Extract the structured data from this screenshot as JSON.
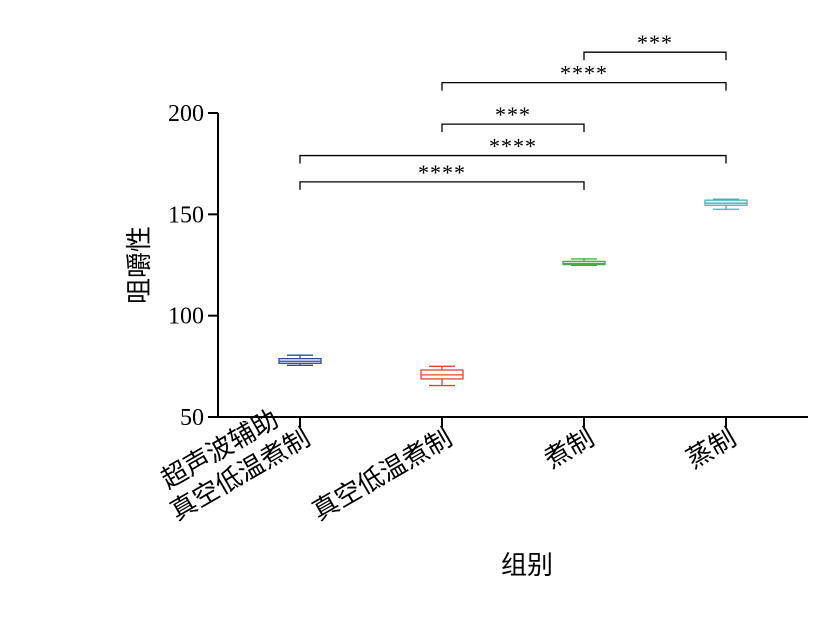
{
  "chart_data": {
    "type": "box",
    "title": "",
    "xlabel": "组别",
    "ylabel": "咀嚼性",
    "ylim": [
      50,
      200
    ],
    "yticks": [
      50,
      100,
      150,
      200
    ],
    "grid": false,
    "legend": "none",
    "categories": [
      [
        "超声波辅助",
        "真空低温煮制"
      ],
      [
        "真空低温煮制"
      ],
      [
        "煮制"
      ],
      [
        "蒸制"
      ]
    ],
    "boxes": [
      {
        "min": 75.5,
        "q1": 76.5,
        "median": 77.5,
        "q3": 78.8,
        "max": 80.5,
        "color": "#2E4A9E"
      },
      {
        "min": 65.5,
        "q1": 68.8,
        "median": 70.8,
        "q3": 73.2,
        "max": 75.0,
        "color": "#E0452F"
      },
      {
        "min": 124.8,
        "q1": 125.2,
        "median": 125.8,
        "q3": 126.8,
        "max": 128.0,
        "color": "#3DAF4A"
      },
      {
        "min": 152.5,
        "q1": 154.5,
        "median": 155.5,
        "q3": 157.0,
        "max": 157.5,
        "color": "#45B3B3"
      }
    ],
    "significance": [
      {
        "from": 2,
        "to": 3,
        "level": 230,
        "label": "***"
      },
      {
        "from": 1,
        "to": 3,
        "level": 215,
        "label": "****"
      },
      {
        "from": 1,
        "to": 2,
        "level": 194.5,
        "label": "***"
      },
      {
        "from": 0,
        "to": 3,
        "level": 179,
        "label": "****"
      },
      {
        "from": 0,
        "to": 2,
        "level": 166,
        "label": "****"
      }
    ]
  }
}
